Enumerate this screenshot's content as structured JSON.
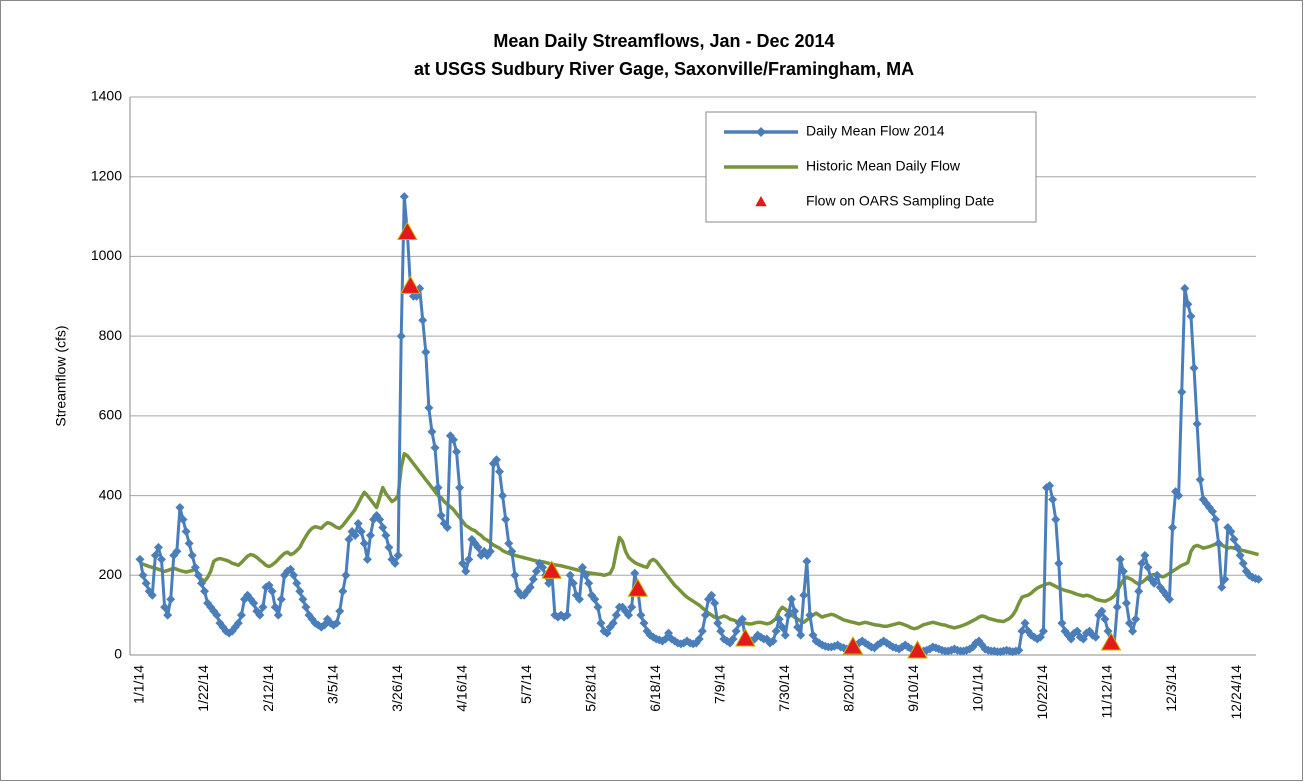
{
  "chart_data": {
    "type": "line",
    "title": "Mean Daily Streamflows, Jan - Dec 2014",
    "subtitle": "at USGS Sudbury River Gage, Saxonville/Framingham, MA",
    "y_label": "Streamflow (cfs)",
    "ylim": [
      0,
      1400
    ],
    "yticks": [
      0,
      200,
      400,
      600,
      800,
      1000,
      1200,
      1400
    ],
    "grid": true,
    "legend": "upper right",
    "x": [
      "1/1/14",
      "1/2/14",
      "1/3/14",
      "1/4/14",
      "1/5/14",
      "1/6/14",
      "1/7/14",
      "1/8/14",
      "1/9/14",
      "1/10/14",
      "1/11/14",
      "1/12/14",
      "1/13/14",
      "1/14/14",
      "1/15/14",
      "1/16/14",
      "1/17/14",
      "1/18/14",
      "1/19/14",
      "1/20/14",
      "1/21/14",
      "1/22/14",
      "1/23/14",
      "1/24/14",
      "1/25/14",
      "1/26/14",
      "1/27/14",
      "1/28/14",
      "1/29/14",
      "1/30/14",
      "1/31/14",
      "2/1/14",
      "2/2/14",
      "2/3/14",
      "2/4/14",
      "2/5/14",
      "2/6/14",
      "2/7/14",
      "2/8/14",
      "2/9/14",
      "2/10/14",
      "2/11/14",
      "2/12/14",
      "2/13/14",
      "2/14/14",
      "2/15/14",
      "2/16/14",
      "2/17/14",
      "2/18/14",
      "2/19/14",
      "2/20/14",
      "2/21/14",
      "2/22/14",
      "2/23/14",
      "2/24/14",
      "2/25/14",
      "2/26/14",
      "2/27/14",
      "2/28/14",
      "3/1/14",
      "3/2/14",
      "3/3/14",
      "3/4/14",
      "3/5/14",
      "3/6/14",
      "3/7/14",
      "3/8/14",
      "3/9/14",
      "3/10/14",
      "3/11/14",
      "3/12/14",
      "3/13/14",
      "3/14/14",
      "3/15/14",
      "3/16/14",
      "3/17/14",
      "3/18/14",
      "3/19/14",
      "3/20/14",
      "3/21/14",
      "3/22/14",
      "3/23/14",
      "3/24/14",
      "3/25/14",
      "3/26/14",
      "3/27/14",
      "3/28/14",
      "3/29/14",
      "3/30/14",
      "3/31/14",
      "4/1/14",
      "4/2/14",
      "4/3/14",
      "4/4/14",
      "4/5/14",
      "4/6/14",
      "4/7/14",
      "4/8/14",
      "4/9/14",
      "4/10/14",
      "4/11/14",
      "4/12/14",
      "4/13/14",
      "4/14/14",
      "4/15/14",
      "4/16/14",
      "4/17/14",
      "4/18/14",
      "4/19/14",
      "4/20/14",
      "4/21/14",
      "4/22/14",
      "4/23/14",
      "4/24/14",
      "4/25/14",
      "4/26/14",
      "4/27/14",
      "4/28/14",
      "4/29/14",
      "4/30/14",
      "5/1/14",
      "5/2/14",
      "5/3/14",
      "5/4/14",
      "5/5/14",
      "5/6/14",
      "5/7/14",
      "5/8/14",
      "5/9/14",
      "5/10/14",
      "5/11/14",
      "5/12/14",
      "5/13/14",
      "5/14/14",
      "5/15/14",
      "5/16/14",
      "5/17/14",
      "5/18/14",
      "5/19/14",
      "5/20/14",
      "5/21/14",
      "5/22/14",
      "5/23/14",
      "5/24/14",
      "5/25/14",
      "5/26/14",
      "5/27/14",
      "5/28/14",
      "5/29/14",
      "5/30/14",
      "5/31/14",
      "6/1/14",
      "6/2/14",
      "6/3/14",
      "6/4/14",
      "6/5/14",
      "6/6/14",
      "6/7/14",
      "6/8/14",
      "6/9/14",
      "6/10/14",
      "6/11/14",
      "6/12/14",
      "6/13/14",
      "6/14/14",
      "6/15/14",
      "6/16/14",
      "6/17/14",
      "6/18/14",
      "6/19/14",
      "6/20/14",
      "6/21/14",
      "6/22/14",
      "6/23/14",
      "6/24/14",
      "6/25/14",
      "6/26/14",
      "6/27/14",
      "6/28/14",
      "6/29/14",
      "6/30/14",
      "7/1/14",
      "7/2/14",
      "7/3/14",
      "7/4/14",
      "7/5/14",
      "7/6/14",
      "7/7/14",
      "7/8/14",
      "7/9/14",
      "7/10/14",
      "7/11/14",
      "7/12/14",
      "7/13/14",
      "7/14/14",
      "7/15/14",
      "7/16/14",
      "7/17/14",
      "7/18/14",
      "7/19/14",
      "7/20/14",
      "7/21/14",
      "7/22/14",
      "7/23/14",
      "7/24/14",
      "7/25/14",
      "7/26/14",
      "7/27/14",
      "7/28/14",
      "7/29/14",
      "7/30/14",
      "7/31/14",
      "8/1/14",
      "8/2/14",
      "8/3/14",
      "8/4/14",
      "8/5/14",
      "8/6/14",
      "8/7/14",
      "8/8/14",
      "8/9/14",
      "8/10/14",
      "8/11/14",
      "8/12/14",
      "8/13/14",
      "8/14/14",
      "8/15/14",
      "8/16/14",
      "8/17/14",
      "8/18/14",
      "8/19/14",
      "8/20/14",
      "8/21/14",
      "8/22/14",
      "8/23/14",
      "8/24/14",
      "8/25/14",
      "8/26/14",
      "8/27/14",
      "8/28/14",
      "8/29/14",
      "8/30/14",
      "8/31/14",
      "9/1/14",
      "9/2/14",
      "9/3/14",
      "9/4/14",
      "9/5/14",
      "9/6/14",
      "9/7/14",
      "9/8/14",
      "9/9/14",
      "9/10/14",
      "9/11/14",
      "9/12/14",
      "9/13/14",
      "9/14/14",
      "9/15/14",
      "9/16/14",
      "9/17/14",
      "9/18/14",
      "9/19/14",
      "9/20/14",
      "9/21/14",
      "9/22/14",
      "9/23/14",
      "9/24/14",
      "9/25/14",
      "9/26/14",
      "9/27/14",
      "9/28/14",
      "9/29/14",
      "9/30/14",
      "10/1/14",
      "10/2/14",
      "10/3/14",
      "10/4/14",
      "10/5/14",
      "10/6/14",
      "10/7/14",
      "10/8/14",
      "10/9/14",
      "10/10/14",
      "10/11/14",
      "10/12/14",
      "10/13/14",
      "10/14/14",
      "10/15/14",
      "10/16/14",
      "10/17/14",
      "10/18/14",
      "10/19/14",
      "10/20/14",
      "10/21/14",
      "10/22/14",
      "10/23/14",
      "10/24/14",
      "10/25/14",
      "10/26/14",
      "10/27/14",
      "10/28/14",
      "10/29/14",
      "10/30/14",
      "10/31/14",
      "11/1/14",
      "11/2/14",
      "11/3/14",
      "11/4/14",
      "11/5/14",
      "11/6/14",
      "11/7/14",
      "11/8/14",
      "11/9/14",
      "11/10/14",
      "11/11/14",
      "11/12/14",
      "11/13/14",
      "11/14/14",
      "11/15/14",
      "11/16/14",
      "11/17/14",
      "11/18/14",
      "11/19/14",
      "11/20/14",
      "11/21/14",
      "11/22/14",
      "11/23/14",
      "11/24/14",
      "11/25/14",
      "11/26/14",
      "11/27/14",
      "11/28/14",
      "11/29/14",
      "11/30/14",
      "12/1/14",
      "12/2/14",
      "12/3/14",
      "12/4/14",
      "12/5/14",
      "12/6/14",
      "12/7/14",
      "12/8/14",
      "12/9/14",
      "12/10/14",
      "12/11/14",
      "12/12/14",
      "12/13/14",
      "12/14/14",
      "12/15/14",
      "12/16/14",
      "12/17/14",
      "12/18/14",
      "12/19/14",
      "12/20/14",
      "12/21/14",
      "12/22/14",
      "12/23/14",
      "12/24/14",
      "12/25/14",
      "12/26/14",
      "12/27/14",
      "12/28/14",
      "12/29/14",
      "12/30/14",
      "12/31/14"
    ],
    "series": [
      {
        "name": "Daily Mean Flow 2014",
        "color": "#4a7ebb",
        "marker": "diamond",
        "values": [
          240,
          200,
          180,
          160,
          150,
          250,
          270,
          240,
          120,
          100,
          140,
          250,
          260,
          370,
          340,
          310,
          280,
          250,
          220,
          200,
          180,
          160,
          130,
          120,
          110,
          100,
          80,
          70,
          60,
          55,
          60,
          70,
          80,
          100,
          140,
          150,
          140,
          130,
          110,
          100,
          120,
          170,
          175,
          160,
          120,
          100,
          140,
          200,
          210,
          215,
          200,
          180,
          160,
          140,
          120,
          100,
          90,
          80,
          75,
          70,
          75,
          90,
          80,
          75,
          80,
          110,
          160,
          200,
          290,
          310,
          300,
          330,
          310,
          280,
          240,
          300,
          340,
          350,
          340,
          320,
          300,
          270,
          240,
          230,
          250,
          800,
          1150,
          1060,
          925,
          900,
          900,
          920,
          840,
          760,
          620,
          560,
          520,
          420,
          350,
          330,
          320,
          550,
          540,
          510,
          420,
          230,
          210,
          240,
          290,
          280,
          270,
          250,
          260,
          250,
          260,
          480,
          490,
          460,
          400,
          340,
          280,
          260,
          200,
          160,
          150,
          150,
          160,
          170,
          190,
          210,
          230,
          220,
          200,
          180,
          210,
          100,
          95,
          100,
          95,
          100,
          200,
          180,
          150,
          140,
          220,
          200,
          180,
          150,
          140,
          120,
          80,
          60,
          55,
          70,
          80,
          100,
          120,
          120,
          110,
          100,
          120,
          205,
          165,
          100,
          80,
          60,
          50,
          45,
          40,
          38,
          35,
          40,
          55,
          40,
          35,
          30,
          28,
          30,
          35,
          30,
          28,
          30,
          40,
          60,
          100,
          140,
          150,
          130,
          80,
          60,
          40,
          35,
          30,
          40,
          60,
          80,
          90,
          40,
          40,
          35,
          40,
          50,
          45,
          40,
          40,
          30,
          35,
          60,
          90,
          70,
          50,
          100,
          140,
          110,
          70,
          50,
          150,
          235,
          100,
          50,
          35,
          30,
          25,
          22,
          20,
          20,
          22,
          25,
          20,
          18,
          15,
          18,
          20,
          25,
          30,
          35,
          30,
          25,
          20,
          18,
          25,
          30,
          35,
          30,
          25,
          20,
          18,
          15,
          20,
          25,
          20,
          15,
          12,
          10,
          8,
          10,
          12,
          15,
          20,
          18,
          15,
          12,
          10,
          10,
          12,
          15,
          12,
          10,
          10,
          12,
          15,
          20,
          30,
          35,
          25,
          15,
          12,
          10,
          10,
          8,
          8,
          10,
          12,
          10,
          8,
          10,
          12,
          60,
          80,
          60,
          50,
          45,
          40,
          45,
          60,
          420,
          425,
          390,
          340,
          230,
          80,
          60,
          50,
          40,
          55,
          60,
          45,
          40,
          55,
          60,
          50,
          45,
          100,
          110,
          90,
          60,
          30,
          25,
          120,
          240,
          210,
          130,
          80,
          60,
          90,
          160,
          230,
          250,
          220,
          190,
          180,
          200,
          170,
          160,
          150,
          140,
          320,
          410,
          400,
          660,
          920,
          880,
          850,
          720,
          580,
          440,
          390,
          380,
          370,
          360,
          340,
          280,
          170,
          190,
          320,
          310,
          290,
          270,
          250,
          230,
          210,
          200,
          195,
          192,
          190
        ]
      },
      {
        "name": "Historic Mean Daily Flow",
        "color": "#77933c",
        "values": [
          230,
          228,
          225,
          222,
          220,
          218,
          215,
          212,
          210,
          212,
          215,
          218,
          215,
          212,
          210,
          208,
          210,
          212,
          215,
          200,
          190,
          185,
          195,
          210,
          235,
          240,
          242,
          240,
          238,
          235,
          230,
          228,
          225,
          232,
          240,
          248,
          252,
          250,
          245,
          238,
          232,
          225,
          222,
          226,
          232,
          240,
          248,
          255,
          258,
          252,
          255,
          262,
          270,
          285,
          298,
          310,
          318,
          322,
          320,
          318,
          326,
          332,
          330,
          325,
          320,
          318,
          325,
          335,
          345,
          355,
          365,
          380,
          395,
          408,
          400,
          390,
          380,
          370,
          395,
          420,
          405,
          395,
          385,
          390,
          400,
          470,
          505,
          500,
          490,
          480,
          470,
          460,
          450,
          440,
          430,
          420,
          410,
          400,
          395,
          385,
          378,
          372,
          365,
          355,
          345,
          335,
          325,
          320,
          315,
          312,
          305,
          300,
          292,
          288,
          282,
          276,
          272,
          268,
          262,
          258,
          255,
          252,
          250,
          248,
          246,
          244,
          242,
          240,
          238,
          236,
          235,
          234,
          232,
          230,
          228,
          226,
          225,
          224,
          222,
          220,
          218,
          216,
          214,
          212,
          210,
          208,
          206,
          205,
          204,
          203,
          202,
          200,
          202,
          205,
          220,
          260,
          295,
          285,
          260,
          245,
          238,
          232,
          228,
          225,
          222,
          220,
          235,
          240,
          235,
          225,
          215,
          205,
          195,
          185,
          175,
          168,
          160,
          152,
          145,
          140,
          135,
          130,
          125,
          118,
          112,
          105,
          100,
          95,
          92,
          95,
          98,
          95,
          90,
          88,
          85,
          82,
          80,
          80,
          78,
          78,
          80,
          82,
          82,
          80,
          78,
          80,
          85,
          92,
          110,
          120,
          115,
          108,
          100,
          95,
          90,
          85,
          82,
          88,
          95,
          100,
          105,
          100,
          95,
          98,
          100,
          102,
          100,
          96,
          92,
          88,
          86,
          84,
          82,
          80,
          78,
          80,
          82,
          80,
          78,
          76,
          75,
          74,
          72,
          72,
          74,
          76,
          78,
          80,
          78,
          75,
          72,
          68,
          66,
          68,
          72,
          76,
          78,
          80,
          82,
          80,
          78,
          76,
          75,
          72,
          70,
          68,
          70,
          72,
          75,
          78,
          82,
          86,
          90,
          95,
          98,
          96,
          92,
          90,
          88,
          86,
          85,
          84,
          88,
          92,
          100,
          112,
          130,
          145,
          148,
          150,
          155,
          162,
          168,
          172,
          175,
          178,
          180,
          176,
          172,
          168,
          165,
          162,
          160,
          158,
          155,
          152,
          150,
          148,
          150,
          148,
          145,
          140,
          138,
          136,
          135,
          138,
          142,
          148,
          160,
          175,
          188,
          195,
          192,
          188,
          182,
          178,
          182,
          188,
          195,
          200,
          202,
          200,
          198,
          196,
          200,
          205,
          210,
          215,
          220,
          225,
          228,
          232,
          260,
          272,
          275,
          272,
          268,
          270,
          272,
          275,
          278,
          280,
          276,
          272,
          268,
          270,
          268,
          266,
          264,
          262,
          260,
          258,
          256,
          254,
          252
        ]
      },
      {
        "name": "Flow on OARS Sampling Date",
        "color": "#e31a1c",
        "type": "scatter",
        "marker": "triangle",
        "x": [
          "3/29/14",
          "3/30/14",
          "5/15/14",
          "6/12/14",
          "7/17/14",
          "8/21/14",
          "9/11/14",
          "11/13/14"
        ],
        "values": [
          1060,
          925,
          210,
          165,
          40,
          20,
          10,
          30
        ]
      }
    ]
  }
}
